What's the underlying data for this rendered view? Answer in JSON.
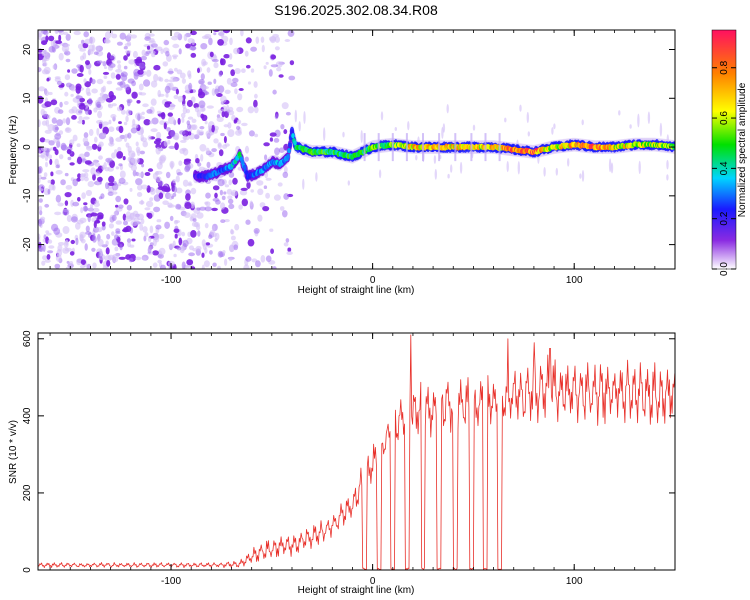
{
  "title": "S196.2025.302.08.34.R08",
  "chart_data": [
    {
      "type": "heatmap",
      "title": "S196.2025.302.08.34.R08",
      "xlabel": "Height of straight line (km)",
      "ylabel": "Frequency (Hz)",
      "xlim": [
        -166,
        150
      ],
      "ylim": [
        -25,
        24
      ],
      "xticks": [
        -100,
        0,
        100
      ],
      "xtick_labels": [
        "-100",
        "0",
        "100"
      ],
      "yticks": [
        -20,
        -10,
        0,
        10,
        20
      ],
      "ytick_labels": [
        "-20",
        "-10",
        "0",
        "10",
        "20"
      ],
      "colorbar": {
        "label": "Normalized spectral amplitude",
        "range": [
          0,
          0.95
        ],
        "ticks": [
          0,
          0.2,
          0.4,
          0.6,
          0.8
        ],
        "tick_labels": [
          "0.0",
          "0.2",
          "0.4",
          "0.6",
          "0.8"
        ]
      },
      "noise_region_km": [
        -166,
        -40
      ],
      "signal_trace": {
        "x": [
          -88,
          -82,
          -76,
          -70,
          -66,
          -62,
          -58,
          -54,
          -50,
          -46,
          -42,
          -40,
          -38,
          -30,
          -20,
          -10,
          0,
          10,
          20,
          30,
          40,
          50,
          60,
          70,
          80,
          90,
          100,
          110,
          120,
          130,
          140,
          150
        ],
        "y": [
          -6,
          -6,
          -5,
          -4,
          -1.5,
          -6,
          -5.5,
          -4.5,
          -3,
          -3.5,
          -2,
          3,
          0,
          -1,
          -1,
          -2,
          0,
          0.5,
          0,
          0,
          0,
          0,
          0,
          -0.5,
          -1,
          0,
          0.5,
          0,
          0,
          0.5,
          0.5,
          0
        ],
        "amplitude": [
          0.2,
          0.3,
          0.3,
          0.4,
          0.45,
          0.25,
          0.3,
          0.35,
          0.35,
          0.35,
          0.3,
          0.3,
          0.5,
          0.55,
          0.5,
          0.5,
          0.55,
          0.6,
          0.75,
          0.8,
          0.75,
          0.7,
          0.75,
          0.85,
          0.9,
          0.65,
          0.8,
          0.85,
          0.7,
          0.7,
          0.65,
          0.6
        ]
      }
    },
    {
      "type": "line",
      "xlabel": "Height of straight line (km)",
      "ylabel": "SNR (10 * v/v)",
      "xlim": [
        -166,
        150
      ],
      "ylim": [
        0,
        615
      ],
      "xticks": [
        -100,
        0,
        100
      ],
      "xtick_labels": [
        "-100",
        "0",
        "100"
      ],
      "yticks": [
        0,
        200,
        400,
        600
      ],
      "ytick_labels": [
        "0",
        "200",
        "400",
        "600"
      ],
      "color": "#e8302a",
      "envelope": {
        "x": [
          -166,
          -140,
          -110,
          -80,
          -66,
          -60,
          -50,
          -40,
          -30,
          -20,
          -10,
          -5,
          0,
          5,
          10,
          15,
          20,
          30,
          40,
          50,
          60,
          64,
          70,
          80,
          90,
          100,
          110,
          120,
          130,
          140,
          150
        ],
        "low": [
          5,
          5,
          5,
          5,
          5,
          10,
          20,
          30,
          50,
          80,
          130,
          170,
          220,
          270,
          300,
          320,
          320,
          330,
          340,
          350,
          350,
          350,
          355,
          360,
          360,
          360,
          360,
          360,
          360,
          360,
          360
        ],
        "high": [
          20,
          20,
          20,
          20,
          25,
          60,
          90,
          100,
          120,
          150,
          210,
          280,
          330,
          380,
          430,
          470,
          490,
          500,
          520,
          520,
          520,
          520,
          540,
          560,
          560,
          560,
          560,
          555,
          550,
          550,
          540
        ]
      },
      "dropouts_km": [
        -4,
        3,
        10,
        17,
        25,
        33,
        41,
        49,
        56,
        63
      ],
      "peaks": [
        {
          "x": 19,
          "y": 610
        },
        {
          "x": 67,
          "y": 600
        },
        {
          "x": 80,
          "y": 590
        },
        {
          "x": 88,
          "y": 575
        }
      ]
    }
  ]
}
